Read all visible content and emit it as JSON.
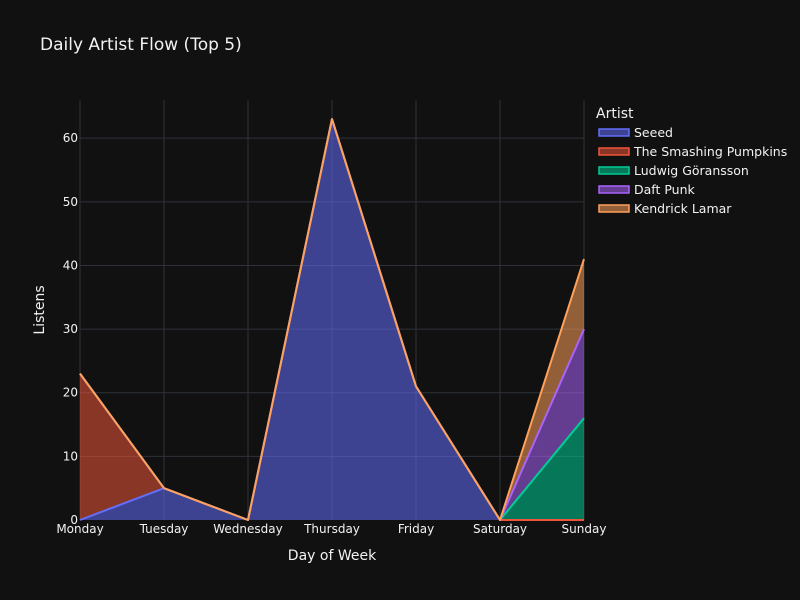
{
  "chart_data": {
    "type": "area",
    "stacked": true,
    "title": "Daily Artist Flow (Top 5)",
    "xlabel": "Day of Week",
    "ylabel": "Listens",
    "categories": [
      "Monday",
      "Tuesday",
      "Wednesday",
      "Thursday",
      "Friday",
      "Saturday",
      "Sunday"
    ],
    "ylim": [
      0,
      66
    ],
    "yticks": [
      0,
      10,
      20,
      30,
      40,
      50,
      60
    ],
    "grid": true,
    "legend_title": "Artist",
    "legend_position": "top-right",
    "series": [
      {
        "name": "Seeed",
        "values": [
          0,
          5,
          0,
          63,
          21,
          0,
          0
        ],
        "color": "#636efa"
      },
      {
        "name": "The Smashing Pumpkins",
        "values": [
          23,
          0,
          0,
          0,
          0,
          0,
          0
        ],
        "color": "#ef553b"
      },
      {
        "name": "Ludwig Göransson",
        "values": [
          0,
          0,
          0,
          0,
          0,
          0,
          16
        ],
        "color": "#00cc96"
      },
      {
        "name": "Daft Punk",
        "values": [
          0,
          0,
          0,
          0,
          0,
          0,
          14
        ],
        "color": "#ab63fa"
      },
      {
        "name": "Kendrick Lamar",
        "values": [
          0,
          0,
          0,
          0,
          0,
          0,
          11
        ],
        "color": "#ffa15a"
      }
    ]
  }
}
